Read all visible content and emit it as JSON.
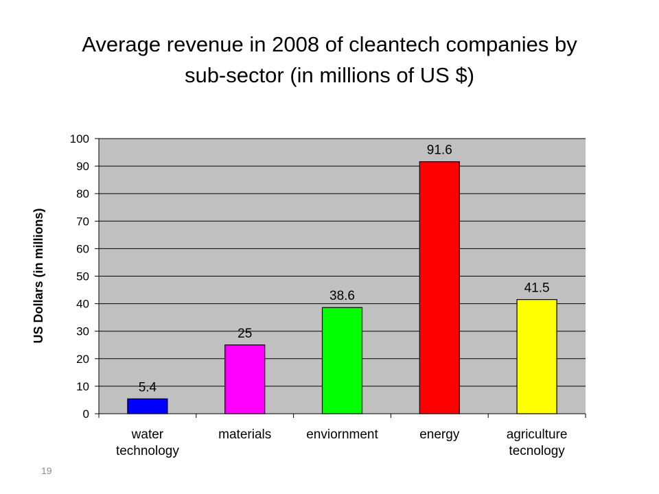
{
  "slide": {
    "title_line1": "Average revenue in 2008 of cleantech companies by",
    "title_line2": "sub-sector  (in millions of US $)",
    "page_number": "19"
  },
  "chart_data": {
    "type": "bar",
    "title": "Average revenue in 2008 of cleantech companies by sub-sector  (in millions of US $)",
    "xlabel": "",
    "ylabel": "US Dollars (in millions)",
    "ylim": [
      0,
      100
    ],
    "yticks": [
      0,
      10,
      20,
      30,
      40,
      50,
      60,
      70,
      80,
      90,
      100
    ],
    "grid": true,
    "legend": "none",
    "categories": [
      [
        "water",
        "technology"
      ],
      [
        "materials"
      ],
      [
        "enviornment"
      ],
      [
        "energy"
      ],
      [
        "agriculture",
        "tecnology"
      ]
    ],
    "values": [
      5.4,
      25,
      38.6,
      91.6,
      41.5
    ],
    "data_labels": [
      "5.4",
      "25",
      "38.6",
      "91.6",
      "41.5"
    ],
    "colors": [
      "#0000ff",
      "#ff00ff",
      "#00ff00",
      "#ff0000",
      "#ffff00"
    ],
    "plot_background": "#c0c0c0"
  }
}
